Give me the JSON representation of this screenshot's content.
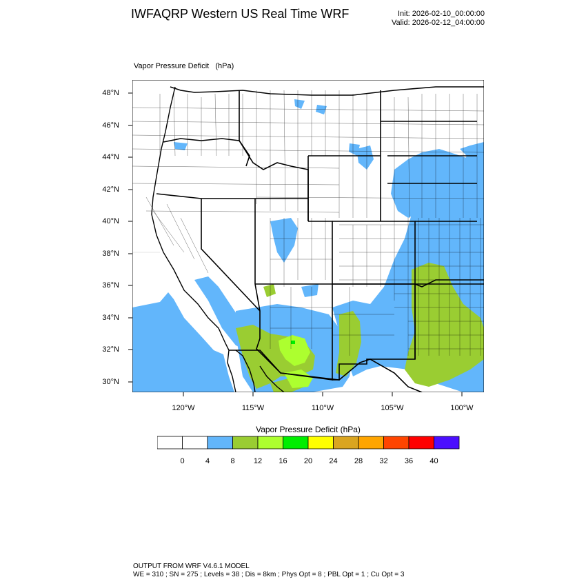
{
  "header": {
    "title": "IWFAQRP Western US Real Time WRF",
    "init": "Init: 2026-02-10_00:00:00",
    "valid": "Valid: 2026-02-12_04:00:00"
  },
  "field": {
    "label": "Vapor Pressure Deficit   (hPa)"
  },
  "axes": {
    "lat_labels": [
      "48°N",
      "46°N",
      "44°N",
      "42°N",
      "40°N",
      "38°N",
      "36°N",
      "34°N",
      "32°N",
      "30°N"
    ],
    "lon_labels": [
      "120°W",
      "115°W",
      "110°W",
      "105°W",
      "100°W"
    ]
  },
  "colorbar": {
    "title": "Vapor Pressure Deficit  (hPa)",
    "labels": [
      "0",
      "4",
      "8",
      "12",
      "16",
      "20",
      "24",
      "28",
      "32",
      "36",
      "40"
    ],
    "colors": [
      "#ffffff",
      "#ffffff",
      "#62b6fb",
      "#9acd32",
      "#adff2f",
      "#00ee00",
      "#ffff00",
      "#daa520",
      "#ffa500",
      "#ff4500",
      "#ff0000",
      "#4b0fff"
    ]
  },
  "footer": {
    "line1": "OUTPUT FROM WRF V4.6.1 MODEL",
    "line2": "WE = 310 ; SN = 275 ; Levels = 38 ; Dis = 8km ; Phys Opt = 8 ; PBL Opt = 1 ; Cu Opt = 3"
  },
  "style": {
    "vpd_blue": "#62b6fb",
    "vpd_green": "#9acd32",
    "vpd_light_green": "#adff2f",
    "vpd_bright_green": "#00ee00"
  }
}
